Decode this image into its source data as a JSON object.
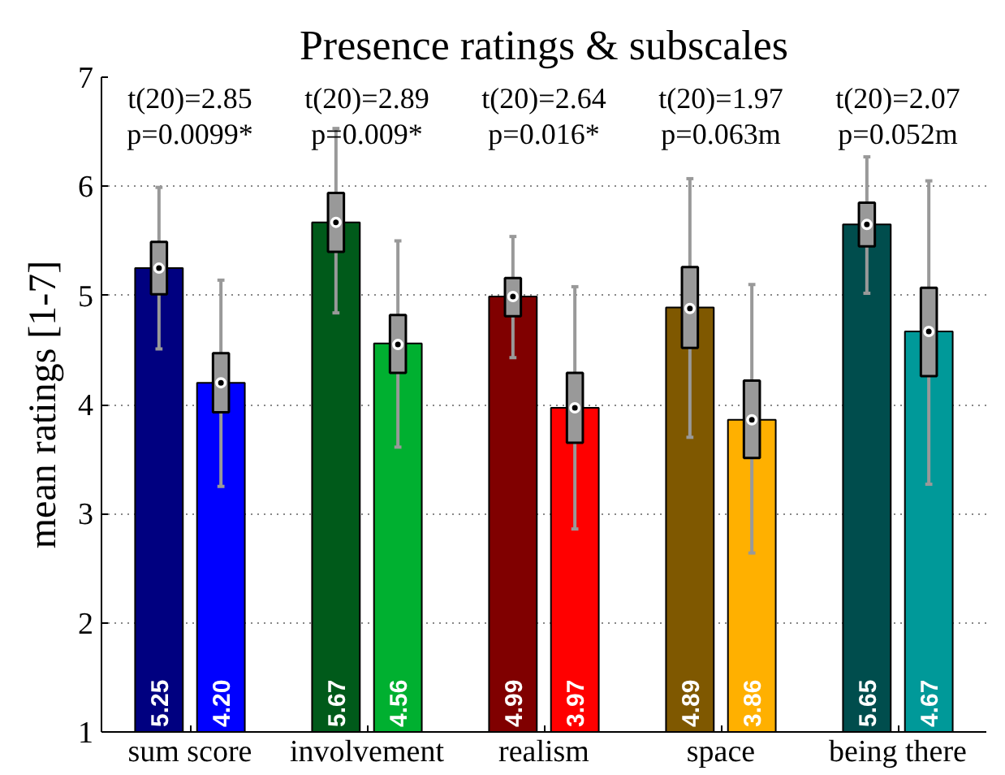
{
  "chart_data": {
    "type": "bar",
    "title": "Presence ratings & subscales",
    "ylabel": "mean ratings [1-7]",
    "categories": [
      "sum score",
      "involvement",
      "realism",
      "space",
      "being there"
    ],
    "ylim": [
      1,
      7
    ],
    "yticks": [
      1,
      2,
      3,
      4,
      5,
      6,
      7
    ],
    "grid": "y",
    "series": [
      {
        "colors": [
          "#000080",
          "#005a1a",
          "#800000",
          "#7f5800",
          "#004d4d"
        ],
        "values": [
          5.25,
          5.67,
          4.99,
          4.89,
          5.65
        ],
        "value_labels": [
          "5.25",
          "5.67",
          "4.99",
          "4.89",
          "5.65"
        ]
      },
      {
        "colors": [
          "#0000ff",
          "#00b030",
          "#ff0000",
          "#ffb000",
          "#009999"
        ],
        "values": [
          4.2,
          4.56,
          3.97,
          3.86,
          4.67
        ],
        "value_labels": [
          "4.20",
          "4.56",
          "3.97",
          "3.86",
          "4.67"
        ]
      },
      {
        "type": "box",
        "color": "#999999",
        "boxes": [
          {
            "low": 4.51,
            "q1": 5.01,
            "median": 5.25,
            "q3": 5.49,
            "high": 5.99
          },
          {
            "low": 4.84,
            "q1": 5.4,
            "median": 5.67,
            "q3": 5.94,
            "high": 6.53
          },
          {
            "low": 4.43,
            "q1": 4.81,
            "median": 4.99,
            "q3": 5.16,
            "high": 5.54
          },
          {
            "low": 3.7,
            "q1": 4.52,
            "median": 4.88,
            "q3": 5.26,
            "high": 6.07
          },
          {
            "low": 5.02,
            "q1": 5.45,
            "median": 5.65,
            "q3": 5.85,
            "high": 6.27
          }
        ]
      },
      {
        "type": "box",
        "color": "#999999",
        "boxes": [
          {
            "low": 3.25,
            "q1": 3.93,
            "median": 4.2,
            "q3": 4.47,
            "high": 5.14
          },
          {
            "low": 3.61,
            "q1": 4.29,
            "median": 4.55,
            "q3": 4.82,
            "high": 5.5
          },
          {
            "low": 2.86,
            "q1": 3.65,
            "median": 3.97,
            "q3": 4.29,
            "high": 5.08
          },
          {
            "low": 2.64,
            "q1": 3.51,
            "median": 3.86,
            "q3": 4.22,
            "high": 5.1
          },
          {
            "low": 3.27,
            "q1": 4.26,
            "median": 4.67,
            "q3": 5.07,
            "high": 6.05
          }
        ]
      }
    ],
    "annotations": [
      "t(20)=2.85\np=0.0099*",
      "t(20)=2.89\np=0.009*",
      "t(20)=2.64\np=0.016*",
      "t(20)=1.97\np=0.063m",
      "t(20)=2.07\np=0.052m"
    ]
  }
}
